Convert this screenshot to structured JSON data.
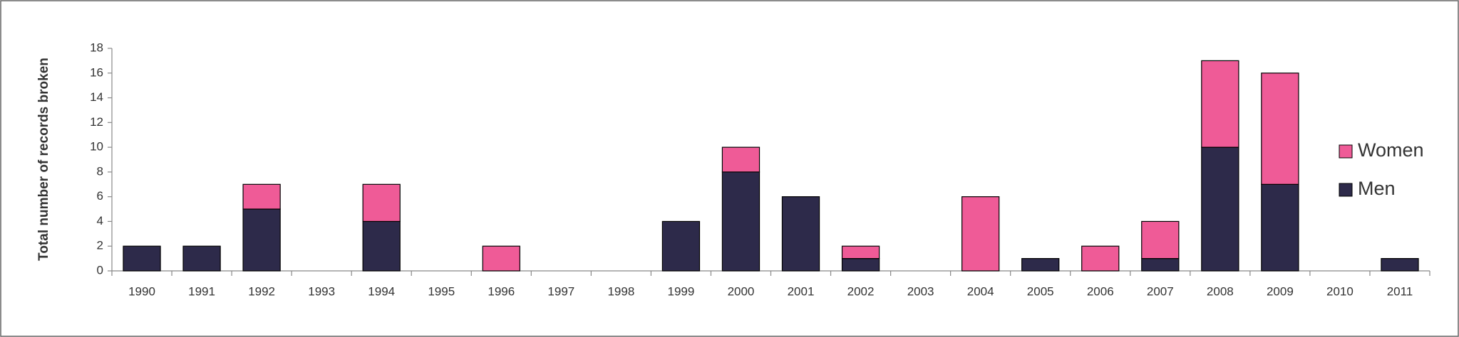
{
  "chart_data": {
    "type": "stacked_bar",
    "y_label": "Total number of records broken",
    "categories": [
      "1990",
      "1991",
      "1992",
      "1993",
      "1994",
      "1995",
      "1996",
      "1997",
      "1998",
      "1999",
      "2000",
      "2001",
      "2002",
      "2003",
      "2004",
      "2005",
      "2006",
      "2007",
      "2008",
      "2009",
      "2010",
      "2011"
    ],
    "series": [
      {
        "name": "Men",
        "color": "#2d2a4a",
        "values": [
          2,
          2,
          5,
          0,
          4,
          0,
          0,
          0,
          0,
          4,
          8,
          6,
          1,
          0,
          0,
          1,
          0,
          1,
          10,
          7,
          0,
          1
        ]
      },
      {
        "name": "Women",
        "color": "#ef5b97",
        "values": [
          0,
          0,
          2,
          0,
          3,
          0,
          2,
          0,
          0,
          0,
          2,
          0,
          1,
          0,
          6,
          0,
          2,
          3,
          7,
          9,
          0,
          0
        ]
      }
    ],
    "ylim": [
      0,
      18
    ],
    "yticks": [
      0,
      2,
      4,
      6,
      8,
      10,
      12,
      14,
      16,
      18
    ],
    "grid": false,
    "legend": "right"
  }
}
